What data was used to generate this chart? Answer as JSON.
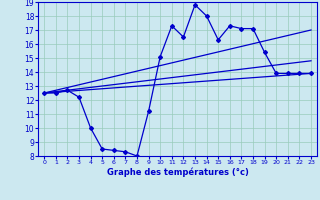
{
  "xlabel": "Graphe des températures (°c)",
  "xlim": [
    -0.5,
    23.5
  ],
  "ylim": [
    8,
    19
  ],
  "yticks": [
    8,
    9,
    10,
    11,
    12,
    13,
    14,
    15,
    16,
    17,
    18,
    19
  ],
  "xticks": [
    0,
    1,
    2,
    3,
    4,
    5,
    6,
    7,
    8,
    9,
    10,
    11,
    12,
    13,
    14,
    15,
    16,
    17,
    18,
    19,
    20,
    21,
    22,
    23
  ],
  "bg_color": "#cce8f0",
  "line_color": "#0000cc",
  "grid_color": "#99ccbb",
  "temp_x": [
    0,
    1,
    2,
    3,
    4,
    5,
    6,
    7,
    8,
    9,
    10,
    11,
    12,
    13,
    14,
    15,
    16,
    17,
    18,
    19,
    20,
    21,
    22,
    23
  ],
  "temp_y": [
    12.5,
    12.5,
    12.7,
    12.2,
    10.0,
    8.5,
    8.4,
    8.3,
    8.0,
    11.2,
    15.1,
    17.3,
    16.5,
    18.8,
    18.0,
    16.3,
    17.3,
    17.1,
    17.1,
    15.4,
    13.9,
    13.9,
    13.9,
    13.9
  ],
  "line1_x": [
    0,
    23
  ],
  "line1_y": [
    12.5,
    13.9
  ],
  "line2_x": [
    0,
    23
  ],
  "line2_y": [
    12.5,
    14.8
  ],
  "line3_x": [
    0,
    23
  ],
  "line3_y": [
    12.5,
    17.0
  ]
}
